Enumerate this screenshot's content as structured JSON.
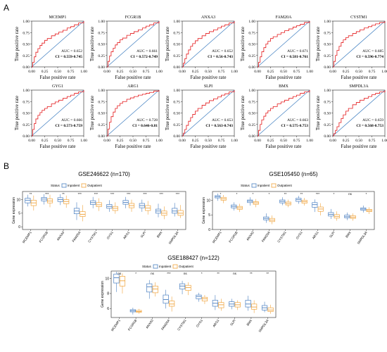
{
  "panel_labels": {
    "a": "A",
    "b": "B"
  },
  "roc": {
    "x_label": "False positive rate",
    "y_label": "True positive rate",
    "ticks": [
      "0.00",
      "0.25",
      "0.50",
      "0.75",
      "1.00"
    ],
    "colors": {
      "curve": "#e41a1c",
      "diagonal": "#3a7bbf"
    }
  },
  "chart_data": [
    {
      "type": "line",
      "title": "MCEMP1",
      "auc_label": "AUC = 0.652",
      "ci_label": "CI = 0.559-0.745",
      "x": [
        0,
        0.02,
        0.05,
        0.08,
        0.12,
        0.16,
        0.2,
        0.25,
        0.3,
        0.38,
        0.45,
        0.52,
        0.6,
        0.68,
        0.75,
        0.82,
        0.9,
        1.0
      ],
      "y": [
        0,
        0.1,
        0.22,
        0.32,
        0.4,
        0.47,
        0.52,
        0.58,
        0.62,
        0.68,
        0.72,
        0.76,
        0.8,
        0.85,
        0.88,
        0.92,
        0.96,
        1.0
      ]
    },
    {
      "type": "line",
      "title": "FCGR1B",
      "auc_label": "AUC = 0.661",
      "ci_label": "CI = 0.572-0.749",
      "x": [
        0,
        0.02,
        0.05,
        0.08,
        0.12,
        0.16,
        0.2,
        0.25,
        0.3,
        0.38,
        0.45,
        0.52,
        0.6,
        0.68,
        0.75,
        0.82,
        0.9,
        1.0
      ],
      "y": [
        0,
        0.12,
        0.24,
        0.33,
        0.41,
        0.48,
        0.53,
        0.59,
        0.63,
        0.69,
        0.73,
        0.77,
        0.81,
        0.85,
        0.89,
        0.92,
        0.96,
        1.0
      ]
    },
    {
      "type": "line",
      "title": "ANXA3",
      "auc_label": "AUC = 0.652",
      "ci_label": "CI = 0.56-0.743",
      "x": [
        0,
        0.02,
        0.05,
        0.08,
        0.12,
        0.16,
        0.2,
        0.25,
        0.3,
        0.38,
        0.45,
        0.52,
        0.6,
        0.68,
        0.75,
        0.82,
        0.9,
        1.0
      ],
      "y": [
        0,
        0.08,
        0.18,
        0.28,
        0.37,
        0.45,
        0.51,
        0.57,
        0.62,
        0.68,
        0.73,
        0.77,
        0.81,
        0.85,
        0.89,
        0.92,
        0.96,
        1.0
      ]
    },
    {
      "type": "line",
      "title": "FAM20A",
      "auc_label": "AUC = 0.671",
      "ci_label": "CI = 0.581-0.761",
      "x": [
        0,
        0.02,
        0.05,
        0.08,
        0.12,
        0.16,
        0.2,
        0.25,
        0.3,
        0.38,
        0.45,
        0.52,
        0.6,
        0.68,
        0.75,
        0.82,
        0.9,
        1.0
      ],
      "y": [
        0,
        0.1,
        0.22,
        0.33,
        0.42,
        0.5,
        0.56,
        0.62,
        0.66,
        0.71,
        0.75,
        0.79,
        0.83,
        0.87,
        0.9,
        0.93,
        0.97,
        1.0
      ]
    },
    {
      "type": "line",
      "title": "CYSTM1",
      "auc_label": "AUC = 0.685",
      "ci_label": "CI = 0.596-0.774",
      "x": [
        0,
        0.02,
        0.05,
        0.08,
        0.12,
        0.16,
        0.2,
        0.25,
        0.3,
        0.38,
        0.45,
        0.52,
        0.6,
        0.68,
        0.75,
        0.82,
        0.9,
        1.0
      ],
      "y": [
        0,
        0.12,
        0.25,
        0.36,
        0.45,
        0.53,
        0.59,
        0.64,
        0.68,
        0.73,
        0.77,
        0.81,
        0.85,
        0.88,
        0.91,
        0.94,
        0.97,
        1.0
      ]
    },
    {
      "type": "line",
      "title": "GYG1",
      "auc_label": "AUC = 0.666",
      "ci_label": "CI = 0.573-0.759",
      "x": [
        0,
        0.02,
        0.05,
        0.08,
        0.12,
        0.16,
        0.2,
        0.25,
        0.3,
        0.38,
        0.45,
        0.52,
        0.6,
        0.68,
        0.75,
        0.82,
        0.9,
        1.0
      ],
      "y": [
        0,
        0.14,
        0.27,
        0.37,
        0.45,
        0.51,
        0.56,
        0.6,
        0.64,
        0.7,
        0.74,
        0.78,
        0.82,
        0.86,
        0.89,
        0.93,
        0.96,
        1.0
      ]
    },
    {
      "type": "line",
      "title": "ARG1",
      "auc_label": "AUC = 0.728",
      "ci_label": "CI = 0.646-0.81",
      "x": [
        0,
        0.02,
        0.05,
        0.08,
        0.12,
        0.16,
        0.2,
        0.25,
        0.3,
        0.38,
        0.45,
        0.52,
        0.6,
        0.68,
        0.75,
        0.82,
        0.9,
        1.0
      ],
      "y": [
        0,
        0.15,
        0.3,
        0.42,
        0.52,
        0.6,
        0.66,
        0.71,
        0.75,
        0.8,
        0.83,
        0.86,
        0.89,
        0.91,
        0.93,
        0.95,
        0.98,
        1.0
      ]
    },
    {
      "type": "line",
      "title": "SLPI",
      "auc_label": "AUC = 0.653",
      "ci_label": "CI = 0.563-0.743",
      "x": [
        0,
        0.02,
        0.05,
        0.08,
        0.12,
        0.16,
        0.2,
        0.25,
        0.3,
        0.38,
        0.45,
        0.52,
        0.6,
        0.68,
        0.75,
        0.82,
        0.9,
        1.0
      ],
      "y": [
        0,
        0.06,
        0.14,
        0.23,
        0.32,
        0.4,
        0.47,
        0.54,
        0.6,
        0.67,
        0.72,
        0.77,
        0.81,
        0.85,
        0.89,
        0.92,
        0.96,
        1.0
      ]
    },
    {
      "type": "line",
      "title": "BMX",
      "auc_label": "AUC = 0.663",
      "ci_label": "CI = 0.575-0.753",
      "x": [
        0,
        0.02,
        0.05,
        0.08,
        0.12,
        0.16,
        0.2,
        0.25,
        0.3,
        0.38,
        0.45,
        0.52,
        0.6,
        0.68,
        0.75,
        0.82,
        0.9,
        1.0
      ],
      "y": [
        0,
        0.12,
        0.25,
        0.35,
        0.43,
        0.5,
        0.55,
        0.6,
        0.64,
        0.7,
        0.74,
        0.78,
        0.82,
        0.86,
        0.89,
        0.93,
        0.96,
        1.0
      ]
    },
    {
      "type": "line",
      "title": "SMPDL3A",
      "auc_label": "AUC = 0.659",
      "ci_label": "CI = 0.568-0.753",
      "x": [
        0,
        0.02,
        0.05,
        0.08,
        0.12,
        0.16,
        0.2,
        0.25,
        0.3,
        0.38,
        0.45,
        0.52,
        0.6,
        0.68,
        0.75,
        0.82,
        0.9,
        1.0
      ],
      "y": [
        0,
        0.05,
        0.12,
        0.2,
        0.29,
        0.38,
        0.46,
        0.54,
        0.6,
        0.68,
        0.73,
        0.78,
        0.82,
        0.86,
        0.9,
        0.93,
        0.96,
        1.0
      ]
    },
    {
      "type": "box",
      "title": "GSE246622 (n=170)",
      "ylabel": "Gene expression",
      "legend_title": "Status",
      "legend": [
        "Inpatient",
        "Outpatient"
      ],
      "colors": [
        "#4a7fc1",
        "#f0a33a"
      ],
      "yticks": [
        0,
        5,
        10
      ],
      "ylim": [
        -1,
        13
      ],
      "categories": [
        "MCEMP1",
        "FCGR1B",
        "ANXA3",
        "FAM20A",
        "CYSTM1",
        "GYG1",
        "ARG1",
        "SLPI",
        "BMX",
        "SMPDL3A"
      ],
      "sig": [
        "**",
        "***",
        "**",
        "***",
        "***",
        "***",
        "***",
        "***",
        "***",
        "***"
      ],
      "series": [
        {
          "name": "Inpatient",
          "stats": [
            [
              7.5,
              8.8,
              9.8,
              10.5,
              11.8
            ],
            [
              8.2,
              9.5,
              10.2,
              10.8,
              12.0
            ],
            [
              8.0,
              9.3,
              10.0,
              10.7,
              12.0
            ],
            [
              2.5,
              4.8,
              5.8,
              6.8,
              9.0
            ],
            [
              6.8,
              8.2,
              8.9,
              9.6,
              11.0
            ],
            [
              5.5,
              6.8,
              7.5,
              8.2,
              9.8
            ],
            [
              6.8,
              8.3,
              9.0,
              9.7,
              11.0
            ],
            [
              5.5,
              7.0,
              7.8,
              8.6,
              10.0
            ],
            [
              3.5,
              5.0,
              5.8,
              6.5,
              8.5
            ],
            [
              3.8,
              5.0,
              5.8,
              6.8,
              8.8
            ]
          ]
        },
        {
          "name": "Outpatient",
          "stats": [
            [
              6.0,
              7.8,
              8.8,
              9.8,
              11.5
            ],
            [
              7.2,
              8.8,
              9.5,
              10.3,
              11.8
            ],
            [
              7.0,
              8.5,
              9.3,
              10.0,
              11.5
            ],
            [
              2.0,
              3.8,
              4.6,
              5.6,
              8.0
            ],
            [
              5.8,
              7.4,
              8.1,
              8.9,
              10.5
            ],
            [
              4.8,
              6.0,
              6.8,
              7.5,
              9.0
            ],
            [
              5.5,
              7.0,
              7.8,
              8.6,
              10.0
            ],
            [
              4.5,
              6.0,
              6.9,
              7.8,
              9.5
            ],
            [
              2.8,
              4.2,
              5.0,
              5.8,
              7.5
            ],
            [
              3.2,
              4.2,
              5.0,
              6.0,
              8.0
            ]
          ]
        }
      ]
    },
    {
      "type": "box",
      "title": "GSE105450 (n=65)",
      "ylabel": "Gene expression",
      "legend_title": "Status",
      "legend": [
        "Inpatient",
        "Outpatient"
      ],
      "colors": [
        "#4a7fc1",
        "#f0a33a"
      ],
      "yticks": [
        0,
        5,
        10
      ],
      "ylim": [
        0,
        13
      ],
      "categories": [
        "MCEMP1",
        "FCGR1B",
        "ANXA3",
        "FAM20A",
        "CYSTM1",
        "GYG1",
        "ARG1",
        "SLPI",
        "BMX",
        "SMPDL3A"
      ],
      "sig": [
        "*",
        "*",
        "*",
        "*",
        "**",
        "**",
        "***",
        "*",
        "ns",
        "*"
      ],
      "series": [
        {
          "name": "Inpatient",
          "stats": [
            [
              9.8,
              10.8,
              11.2,
              11.6,
              12.3
            ],
            [
              6.5,
              7.4,
              7.9,
              8.4,
              9.3
            ],
            [
              8.2,
              9.2,
              9.7,
              10.1,
              11.0
            ],
            [
              2.3,
              3.3,
              3.8,
              4.3,
              5.5
            ],
            [
              8.3,
              9.1,
              9.6,
              10.1,
              11.0
            ],
            [
              8.8,
              9.6,
              10.2,
              10.7,
              11.5
            ],
            [
              6.0,
              7.6,
              8.5,
              9.2,
              10.3
            ],
            [
              3.6,
              4.6,
              5.2,
              5.8,
              7.0
            ],
            [
              3.2,
              4.0,
              4.4,
              4.9,
              5.8
            ],
            [
              5.8,
              6.6,
              7.0,
              7.4,
              8.2
            ]
          ]
        },
        {
          "name": "Outpatient",
          "stats": [
            [
              9.0,
              10.0,
              10.5,
              11.0,
              11.8
            ],
            [
              6.0,
              6.9,
              7.4,
              7.9,
              8.8
            ],
            [
              7.6,
              8.6,
              9.1,
              9.5,
              10.4
            ],
            [
              1.8,
              2.7,
              3.2,
              3.8,
              4.8
            ],
            [
              7.6,
              8.4,
              8.9,
              9.4,
              10.2
            ],
            [
              8.2,
              9.0,
              9.5,
              10.0,
              10.8
            ],
            [
              4.8,
              6.2,
              7.0,
              7.7,
              9.0
            ],
            [
              3.0,
              3.9,
              4.5,
              5.1,
              6.2
            ],
            [
              3.0,
              3.8,
              4.2,
              4.7,
              5.5
            ],
            [
              5.3,
              6.1,
              6.5,
              6.9,
              7.6
            ]
          ]
        }
      ]
    },
    {
      "type": "box",
      "title": "GSE188427 (n=122)",
      "ylabel": "Gene expression",
      "legend_title": "Status",
      "legend": [
        "Inpatient",
        "Outpatient"
      ],
      "colors": [
        "#4a7fc1",
        "#f0a33a"
      ],
      "yticks": [
        6,
        8,
        10
      ],
      "ylim": [
        4.8,
        11
      ],
      "categories": [
        "MCEMP1",
        "FCGR1B",
        "ANXA3",
        "FAM20A",
        "CYSTM1",
        "GYG1",
        "ARG1",
        "SLPI",
        "BMX",
        "SMPDL3A"
      ],
      "sig": [
        "ns",
        "*",
        "ns",
        "***",
        "ns",
        "*",
        "**",
        "ns",
        "**",
        "**"
      ],
      "series": [
        {
          "name": "Inpatient",
          "stats": [
            [
              8.2,
              9.4,
              10.1,
              10.6,
              10.9
            ],
            [
              5.2,
              5.55,
              5.7,
              5.85,
              6.1
            ],
            [
              7.3,
              8.2,
              8.9,
              9.3,
              9.8
            ],
            [
              6.0,
              6.7,
              7.2,
              7.8,
              8.5
            ],
            [
              7.9,
              8.6,
              9.0,
              9.3,
              9.7
            ],
            [
              6.9,
              7.3,
              7.6,
              7.8,
              8.1
            ],
            [
              5.8,
              6.3,
              6.7,
              7.1,
              7.8
            ],
            [
              5.9,
              6.3,
              6.6,
              6.9,
              7.3
            ],
            [
              5.7,
              6.2,
              6.6,
              7.1,
              7.7
            ],
            [
              5.5,
              5.8,
              6.1,
              6.4,
              6.9
            ]
          ]
        },
        {
          "name": "Outpatient",
          "stats": [
            [
              8.0,
              9.0,
              9.7,
              10.3,
              10.7
            ],
            [
              5.3,
              5.5,
              5.6,
              5.75,
              5.95
            ],
            [
              7.6,
              8.1,
              8.6,
              9.0,
              9.5
            ],
            [
              5.6,
              6.3,
              6.6,
              7.0,
              7.6
            ],
            [
              7.8,
              8.4,
              8.8,
              9.1,
              9.5
            ],
            [
              6.6,
              7.0,
              7.3,
              7.5,
              7.8
            ],
            [
              5.7,
              6.1,
              6.5,
              6.8,
              7.3
            ],
            [
              5.8,
              6.2,
              6.5,
              6.8,
              7.1
            ],
            [
              5.4,
              5.9,
              6.2,
              6.6,
              7.1
            ],
            [
              5.3,
              5.6,
              5.8,
              6.1,
              6.5
            ]
          ]
        }
      ]
    }
  ]
}
